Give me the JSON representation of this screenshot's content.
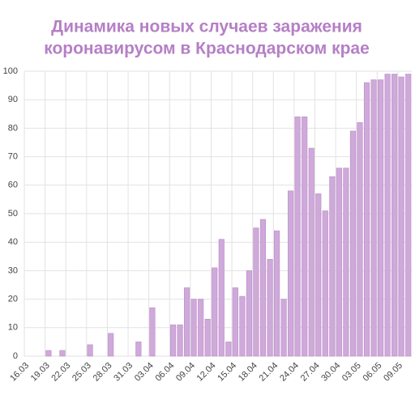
{
  "chart_data": {
    "type": "bar",
    "title": [
      "Динамика новых случаев заражения",
      "коронавирусом в Краснодарском крае"
    ],
    "categories": [
      "16.03",
      null,
      null,
      "19.03",
      null,
      null,
      "22.03",
      null,
      null,
      "25.03",
      null,
      null,
      "28.03",
      null,
      null,
      "31.03",
      null,
      null,
      "03.04",
      null,
      null,
      "06.04",
      null,
      null,
      "09.04",
      null,
      null,
      "12.04",
      null,
      null,
      "15.04",
      null,
      null,
      "18.04",
      null,
      null,
      "21.04",
      null,
      null,
      "24.04",
      null,
      null,
      "27.04",
      null,
      null,
      "30.04",
      null,
      null,
      "03.05",
      null,
      null,
      "06.05",
      null,
      null,
      "09.05",
      null
    ],
    "values": [
      0,
      0,
      0,
      2,
      0,
      2,
      0,
      0,
      0,
      4,
      0,
      0,
      8,
      0,
      0,
      0,
      5,
      0,
      17,
      0,
      0,
      11,
      11,
      24,
      20,
      20,
      13,
      31,
      41,
      5,
      24,
      21,
      30,
      45,
      48,
      34,
      44,
      20,
      58,
      84,
      84,
      73,
      57,
      51,
      63,
      66,
      66,
      79,
      82,
      96,
      97,
      97,
      99,
      99,
      98,
      99
    ],
    "color": "#cfa9da",
    "ylim": [
      0,
      100
    ],
    "yticks": [
      0,
      10,
      20,
      30,
      40,
      50,
      60,
      70,
      80,
      90,
      100
    ],
    "grid": true
  }
}
